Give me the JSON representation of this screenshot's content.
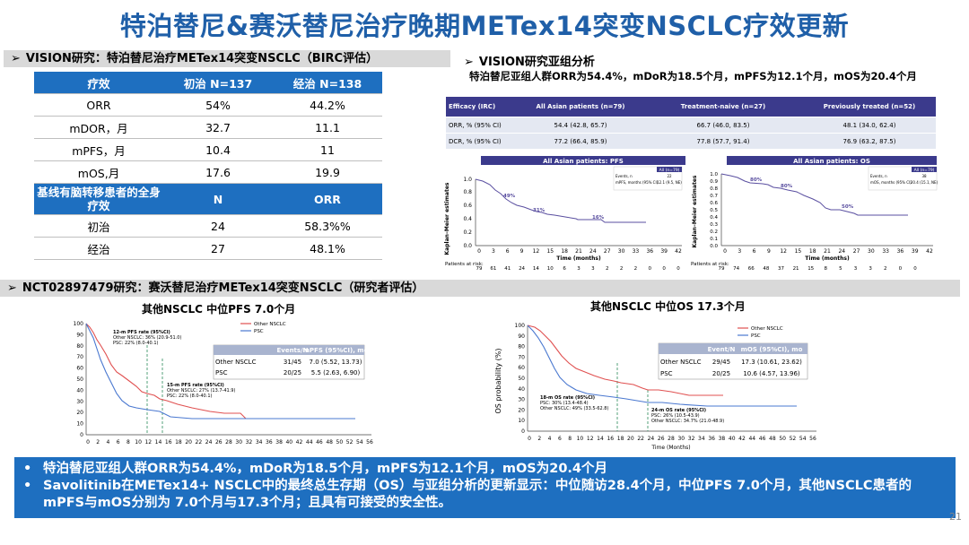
{
  "title": "特泊替尼&赛沃替尼治疗晚期METex14突变NSCLC疗效更新",
  "section1": {
    "header": "VISION研究：特泊替尼治疗METex14突变NSCLC（BIRC评估）"
  },
  "section2": {
    "header": "VISION研究亚组分析",
    "subtitle": "特泊替尼亚组人群ORR为54.4%，mDoR为18.5个月，mPFS为12.1个月，mOS为20.4个月"
  },
  "section3": {
    "header": "NCT02897479研究：赛沃替尼治疗METex14突变NSCLC（研究者评估）"
  },
  "efficacy_table": {
    "headers": [
      "疗效",
      "初治 N=137",
      "经治 N=138"
    ],
    "rows": [
      [
        "ORR",
        "54%",
        "44.2%"
      ],
      [
        "mDOR，月",
        "32.7",
        "11.1"
      ],
      [
        "mPFS，月",
        "10.4",
        "11"
      ],
      [
        "mOS,月",
        "17.6",
        "19.9"
      ]
    ],
    "sub_headers": [
      "基线有脑转移患者的全身疗效",
      "N",
      "ORR"
    ],
    "sub_rows": [
      [
        "初治",
        "24",
        "58.3%%"
      ],
      [
        "经治",
        "27",
        "48.1%"
      ]
    ]
  },
  "vision_table": {
    "headers": [
      "Efficacy (IRC)",
      "All Asian patients (n=79)",
      "Treatment-naive (n=27)",
      "Previously treated (n=52)"
    ],
    "rows": [
      [
        "ORR, % (95% CI)",
        "54.4 (42.8, 65.7)",
        "66.7 (46.0, 83.5)",
        "48.1 (34.0, 62.4)"
      ],
      [
        "DCR, % (95% CI)",
        "77.2 (66.4, 85.9)",
        "77.8 (57.7, 91.4)",
        "76.9 (63.2, 87.5)"
      ]
    ]
  },
  "km_pfs": {
    "title": "All Asian patients: PFS",
    "ylabel": "Kaplan–Meier estimates",
    "xlabel": "Time (months)",
    "xticks": [
      "0",
      "3",
      "6",
      "9",
      "12",
      "15",
      "18",
      "21",
      "24",
      "27",
      "30",
      "33",
      "36",
      "39",
      "42"
    ],
    "yticks": [
      "0.0",
      "0.2",
      "0.4",
      "0.6",
      "0.8",
      "1.0"
    ],
    "risk_label": "Patients at risk:",
    "risk": [
      "79",
      "61",
      "41",
      "24",
      "14",
      "10",
      "6",
      "3",
      "3",
      "2",
      "2",
      "2",
      "0",
      "0",
      "0"
    ],
    "annotations": [
      "49%",
      "31%",
      "16%"
    ],
    "legend_header": "All (n=79)",
    "legend_rows": [
      [
        "Events, n",
        "22"
      ],
      [
        "mPFS, months (95% CI)",
        "12.1 (9.5, NE)"
      ]
    ]
  },
  "km_os": {
    "title": "All Asian patients: OS",
    "ylabel": "Kaplan–Meier estimates",
    "xlabel": "Time (months)",
    "xticks": [
      "0",
      "3",
      "6",
      "9",
      "12",
      "15",
      "18",
      "21",
      "24",
      "27",
      "30",
      "33",
      "36",
      "39",
      "42"
    ],
    "yticks": [
      "0.0",
      "0.1",
      "0.2",
      "0.3",
      "0.4",
      "0.5",
      "0.6",
      "0.7",
      "0.8",
      "0.9",
      "1.0"
    ],
    "risk_label": "Patients at risk:",
    "risk": [
      "79",
      "74",
      "66",
      "48",
      "37",
      "21",
      "15",
      "8",
      "5",
      "3",
      "3",
      "2",
      "0",
      "0"
    ],
    "annotations": [
      "80%",
      "80%",
      "50%"
    ],
    "legend_header": "All (n=79)",
    "legend_rows": [
      [
        "Events, n",
        "38"
      ],
      [
        "mOS, months (95% CI)",
        "20.4 (15.1, NE)"
      ]
    ]
  },
  "savo_pfs": {
    "caption": "其他NSCLC 中位PFS 7.0个月",
    "legend": [
      "Other NSCLC",
      "PSC"
    ],
    "colors": {
      "other": "#e05050",
      "psc": "#4a78d0"
    },
    "table_headers": [
      "",
      "Events/N",
      "mPFS (95%CI), mo"
    ],
    "table_rows": [
      [
        "Other NSCLC",
        "31/45",
        "7.0 (5.52, 13.73)"
      ],
      [
        "PSC",
        "20/25",
        "5.5 (2.63, 6.90)"
      ]
    ],
    "ann12": [
      "12-m PFS rate (95%CI)",
      "Other NSCLC: 36% (20.9-51.0)",
      "PSC: 22% (8.0-40.1)"
    ],
    "ann15": [
      "15-m PFS rate (95%CI)",
      "Other NSCLC: 27% (13.7-41.9)",
      "PSC: 22% (8.0-40.1)"
    ],
    "xticks": [
      "0",
      "2",
      "4",
      "6",
      "8",
      "10",
      "12",
      "14",
      "16",
      "18",
      "20",
      "22",
      "24",
      "26",
      "28",
      "30",
      "32",
      "34",
      "36",
      "38",
      "40",
      "42",
      "44",
      "46",
      "48",
      "50",
      "52",
      "54",
      "56"
    ],
    "yticks": [
      "0",
      "10",
      "20",
      "30",
      "40",
      "50",
      "60",
      "70",
      "80",
      "90",
      "100"
    ]
  },
  "savo_os": {
    "caption": "其他NSCLC 中位OS 17.3个月",
    "ylabel": "OS probability (%)",
    "xlabel": "Time (Months)",
    "legend": [
      "Other NSCLC",
      "PSC"
    ],
    "table_headers": [
      "",
      "Event/N",
      "mOS (95%CI), mo"
    ],
    "table_rows": [
      [
        "Other NSCLC",
        "29/45",
        "17.3 (10.61, 23.62)"
      ],
      [
        "PSC",
        "20/25",
        "10.6 (4.57, 13.96)"
      ]
    ],
    "ann18": [
      "18-m OS rate (95%CI)",
      "PSC: 30% (13.4-48.4)",
      "Other NSCLC: 49% (33.5-62.8)"
    ],
    "ann24": [
      "24-m OS rate (95%CI)",
      "PSC: 26% (10.5-43.9)",
      "Other NSCLC: 34.7% (21.0-48.9)"
    ],
    "xticks": [
      "0",
      "2",
      "4",
      "6",
      "8",
      "10",
      "12",
      "14",
      "16",
      "18",
      "20",
      "22",
      "24",
      "26",
      "28",
      "30",
      "32",
      "34",
      "36",
      "38",
      "40",
      "42",
      "44",
      "46",
      "48",
      "50",
      "52",
      "54",
      "56"
    ],
    "yticks": [
      "0",
      "10",
      "20",
      "30",
      "40",
      "50",
      "60",
      "70",
      "80",
      "90",
      "100"
    ]
  },
  "bullets": [
    "特泊替尼亚组人群ORR为54.4%，mDoR为18.5个月，mPFS为12.1个月，mOS为20.4个月",
    "Savolitinib在METex14+ NSCLC中的最终总生存期（OS）与亚组分析的更新显示：中位随访28.4个月，中位PFS 7.0个月，其他NSCLC患者的mPFS与mOS分别为 7.0个月与17.3个月；且具有可接受的安全性。"
  ],
  "page_number": "21"
}
